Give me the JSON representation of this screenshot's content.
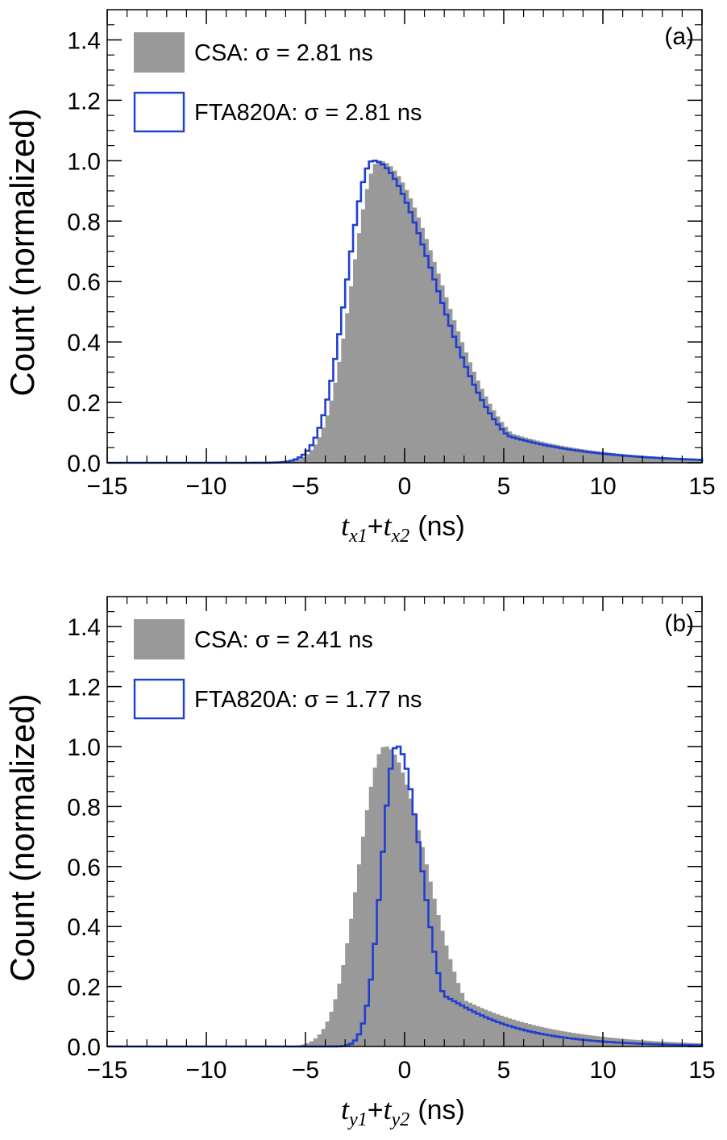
{
  "chart_data": [
    {
      "type": "histogram",
      "panel_label": "(a)",
      "title": "",
      "ylabel": "Count (normalized)",
      "xlabel": {
        "var1": "t",
        "sub1": "x1",
        "plus": "+",
        "var2": "t",
        "sub2": "x2",
        "unit": "(ns)"
      },
      "xlim": [
        -15,
        15
      ],
      "ylim": [
        0,
        1.5
      ],
      "xticks": [
        -15,
        -10,
        -5,
        0,
        5,
        10,
        15
      ],
      "xtick_labels": [
        "−15",
        "−10",
        "−5",
        "0",
        "5",
        "10",
        "15"
      ],
      "yticks": [
        0,
        0.2,
        0.4,
        0.6,
        0.8,
        1.0,
        1.2,
        1.4
      ],
      "ytick_labels": [
        "0.0",
        "0.2",
        "0.4",
        "0.6",
        "0.8",
        "1.0",
        "1.2",
        "1.4"
      ],
      "bin_width": 0.2,
      "legend_position": "top-left",
      "series": [
        {
          "name": "CSA",
          "legend": "CSA: σ = 2.81 ns",
          "style": "filled",
          "color": "#999999",
          "profile": {
            "peak": -1.3,
            "width_left": 1.35,
            "width_right": 3.1,
            "tail_decay": 2.1,
            "tail_start": 1.2
          }
        },
        {
          "name": "FTA820A",
          "legend": "FTA820A: σ = 2.81 ns",
          "style": "outline",
          "color": "#1f3fd0",
          "profile": {
            "peak": -1.6,
            "width_left": 1.3,
            "width_right": 3.1,
            "tail_decay": 2.0,
            "tail_start": 1.2
          }
        }
      ]
    },
    {
      "type": "histogram",
      "panel_label": "(b)",
      "title": "",
      "ylabel": "Count (normalized)",
      "xlabel": {
        "var1": "t",
        "sub1": "y1",
        "plus": "+",
        "var2": "t",
        "sub2": "y2",
        "unit": "(ns)"
      },
      "xlim": [
        -15,
        15
      ],
      "ylim": [
        0,
        1.5
      ],
      "xticks": [
        -15,
        -10,
        -5,
        0,
        5,
        10,
        15
      ],
      "xtick_labels": [
        "−15",
        "−10",
        "−5",
        "0",
        "5",
        "10",
        "15"
      ],
      "yticks": [
        0,
        0.2,
        0.4,
        0.6,
        0.8,
        1.0,
        1.2,
        1.4
      ],
      "ytick_labels": [
        "0.0",
        "0.2",
        "0.4",
        "0.6",
        "0.8",
        "1.0",
        "1.2",
        "1.4"
      ],
      "bin_width": 0.2,
      "legend_position": "top-left",
      "series": [
        {
          "name": "CSA",
          "legend": "CSA: σ = 2.41 ns",
          "style": "filled",
          "color": "#999999",
          "profile": {
            "peak": -1.0,
            "width_left": 1.3,
            "width_right": 2.1,
            "tail_decay": 2.0,
            "tail_start": 0.9
          }
        },
        {
          "name": "FTA820A",
          "legend": "FTA820A: σ = 1.77 ns",
          "style": "outline",
          "color": "#1f3fd0",
          "profile": {
            "peak": -0.4,
            "width_left": 0.75,
            "width_right": 1.25,
            "tail_decay": 1.5,
            "tail_start": 0.6
          }
        }
      ]
    }
  ]
}
